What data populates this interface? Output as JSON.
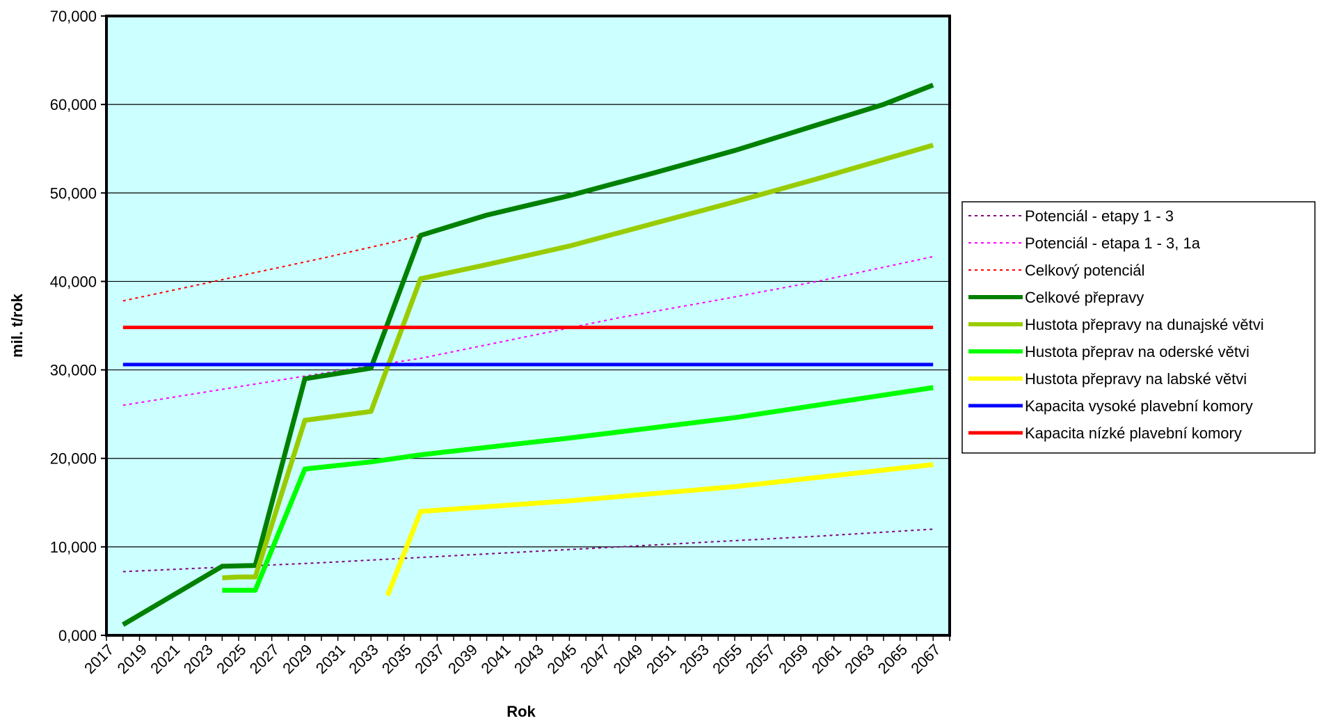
{
  "chart_data": {
    "type": "line",
    "xlabel": "Rok",
    "ylabel": "mil. t/rok",
    "xlim": [
      2017,
      2068
    ],
    "ylim": [
      0,
      70
    ],
    "y_ticks": [
      "0,000",
      "10,000",
      "20,000",
      "30,000",
      "40,000",
      "50,000",
      "60,000",
      "70,000"
    ],
    "x_ticks": [
      "2017",
      "2019",
      "2021",
      "2023",
      "2025",
      "2027",
      "2029",
      "2031",
      "2033",
      "2035",
      "2037",
      "2039",
      "2041",
      "2043",
      "2045",
      "2047",
      "2049",
      "2051",
      "2053",
      "2055",
      "2057",
      "2059",
      "2061",
      "2063",
      "2065",
      "2067"
    ],
    "plot_background": "#ccffff",
    "grid": "horizontal",
    "legend_position": "right",
    "series": [
      {
        "name": "Potenciál - etapy 1 - 3",
        "color": "#800080",
        "style": "dotted",
        "width": 2,
        "points": [
          [
            2018,
            7.2
          ],
          [
            2024,
            7.7
          ],
          [
            2030,
            8.2
          ],
          [
            2036,
            8.8
          ],
          [
            2042,
            9.4
          ],
          [
            2048,
            10.0
          ],
          [
            2054,
            10.6
          ],
          [
            2060,
            11.2
          ],
          [
            2067,
            12.0
          ]
        ]
      },
      {
        "name": "Potenciál - etapa 1 - 3, 1a",
        "color": "#ff00ff",
        "style": "dotted",
        "width": 2,
        "points": [
          [
            2018,
            26.0
          ],
          [
            2024,
            27.8
          ],
          [
            2030,
            29.6
          ],
          [
            2036,
            31.3
          ],
          [
            2042,
            33.6
          ],
          [
            2048,
            35.9
          ],
          [
            2054,
            37.9
          ],
          [
            2060,
            40.0
          ],
          [
            2067,
            42.8
          ]
        ]
      },
      {
        "name": "Celkový potenciál",
        "color": "#ff0000",
        "style": "dotted",
        "width": 2,
        "points": [
          [
            2018,
            37.8
          ],
          [
            2022,
            39.4
          ],
          [
            2026,
            41.0
          ],
          [
            2030,
            42.6
          ],
          [
            2034,
            44.3
          ],
          [
            2036,
            45.2
          ]
        ]
      },
      {
        "name": "Celkové přepravy",
        "color": "#008000",
        "style": "solid",
        "width": 7,
        "points": [
          [
            2018,
            1.2
          ],
          [
            2024,
            7.8
          ],
          [
            2026,
            7.9
          ],
          [
            2029,
            29.0
          ],
          [
            2033,
            30.2
          ],
          [
            2036,
            45.2
          ],
          [
            2040,
            47.5
          ],
          [
            2045,
            49.7
          ],
          [
            2050,
            52.2
          ],
          [
            2055,
            54.8
          ],
          [
            2060,
            57.7
          ],
          [
            2064,
            60.0
          ],
          [
            2067,
            62.2
          ]
        ]
      },
      {
        "name": "Hustota přepravy na dunajské větvi",
        "color": "#99cc00",
        "style": "solid",
        "width": 7,
        "points": [
          [
            2024,
            6.5
          ],
          [
            2025,
            6.6
          ],
          [
            2026,
            6.6
          ],
          [
            2029,
            24.3
          ],
          [
            2033,
            25.3
          ],
          [
            2036,
            40.3
          ],
          [
            2040,
            41.9
          ],
          [
            2045,
            44.0
          ],
          [
            2050,
            46.5
          ],
          [
            2055,
            49.0
          ],
          [
            2060,
            51.6
          ],
          [
            2067,
            55.4
          ]
        ]
      },
      {
        "name": "Hustota přeprav na oderské větvi",
        "color": "#00ff00",
        "style": "solid",
        "width": 7,
        "points": [
          [
            2024,
            5.1
          ],
          [
            2026,
            5.1
          ],
          [
            2029,
            18.8
          ],
          [
            2033,
            19.6
          ],
          [
            2036,
            20.4
          ],
          [
            2045,
            22.3
          ],
          [
            2055,
            24.6
          ],
          [
            2067,
            28.0
          ]
        ]
      },
      {
        "name": "Hustota přepravy na labské větvi",
        "color": "#ffff00",
        "style": "solid",
        "width": 7,
        "points": [
          [
            2034,
            4.5
          ],
          [
            2036,
            14.0
          ],
          [
            2045,
            15.2
          ],
          [
            2055,
            16.8
          ],
          [
            2067,
            19.3
          ]
        ]
      },
      {
        "name": "Kapacita vysoké plavební komory",
        "color": "#0000ff",
        "style": "solid",
        "width": 5,
        "points": [
          [
            2018,
            30.6
          ],
          [
            2067,
            30.6
          ]
        ]
      },
      {
        "name": "Kapacita nízké plavební komory",
        "color": "#ff0000",
        "style": "solid",
        "width": 5,
        "points": [
          [
            2018,
            34.8
          ],
          [
            2067,
            34.8
          ]
        ]
      }
    ]
  }
}
